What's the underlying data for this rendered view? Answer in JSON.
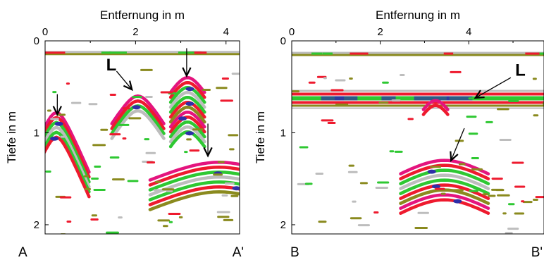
{
  "colors": {
    "red": "#ee1a2e",
    "magenta": "#e4147e",
    "green": "#2ec832",
    "blue": "#2e2ea8",
    "olive": "#8a8a1e",
    "gray": "#bdbdbd",
    "frame": "#000000"
  },
  "chart_data": [
    {
      "type": "heatmap",
      "title": "",
      "xlabel": "Entfernung in m",
      "ylabel": "Tiefe in m",
      "xlim": [
        0,
        4.3
      ],
      "ylim": [
        0,
        2.1
      ],
      "y_inverted": true,
      "x_ticks": [
        0,
        2,
        4
      ],
      "x_tick_labels": [
        "0",
        "2",
        "4"
      ],
      "y_ticks": [
        0,
        1,
        2
      ],
      "y_tick_labels": [
        "0",
        "1",
        "2"
      ],
      "profile_start_label": "A",
      "profile_end_label": "A'",
      "surface_reflection_depth": 0.14,
      "hyperbolas": [
        {
          "apex_x": 0.25,
          "apex_depth": 0.78,
          "width": 0.35,
          "layers": 6,
          "arm_reach": 0.6
        },
        {
          "apex_x": 2.05,
          "apex_depth": 0.6,
          "width": 0.5,
          "layers": 4,
          "arm_reach": 0.4
        },
        {
          "apex_x": 3.15,
          "apex_depth": 0.4,
          "width": 0.5,
          "layers": 12,
          "arm_reach": 0.2
        },
        {
          "apex_x": 3.85,
          "apex_depth": 1.32,
          "width": 1.8,
          "layers": 7,
          "arm_reach": 0.9
        }
      ],
      "annotations": [
        {
          "type": "arrow",
          "x": 0.27,
          "depth": 0.8,
          "from_dx": 0,
          "from_depth": 0.58
        },
        {
          "type": "arrow",
          "x": 3.13,
          "depth": 0.38,
          "from_dx": 0,
          "from_depth": 0.08
        },
        {
          "type": "arrow",
          "x": 3.6,
          "depth": 1.25,
          "from_dx": 0,
          "from_depth": 0.9
        },
        {
          "type": "arrow",
          "x": 1.92,
          "depth": 0.53,
          "from_x": 1.58,
          "from_depth": 0.33
        },
        {
          "type": "label",
          "text": "L",
          "x": 1.35,
          "depth": 0.32
        }
      ]
    },
    {
      "type": "heatmap",
      "title": "",
      "xlabel": "Entfernung in m",
      "ylabel": "Tiefe in m",
      "xlim": [
        0,
        5.7
      ],
      "ylim": [
        0,
        2.1
      ],
      "y_inverted": true,
      "x_ticks": [
        0,
        2,
        4
      ],
      "x_tick_labels": [
        "0",
        "2",
        "4"
      ],
      "y_ticks": [
        0,
        1,
        2
      ],
      "y_tick_labels": [
        "0",
        "1",
        "2"
      ],
      "profile_start_label": "B",
      "profile_end_label": "B'",
      "surface_reflection_depth": 0.15,
      "layer_reflection_depth": 0.64,
      "hyperbolas": [
        {
          "apex_x": 3.25,
          "apex_depth": 0.65,
          "width": 0.5,
          "layers": 2,
          "arm_reach": 0.1
        },
        {
          "apex_x": 3.45,
          "apex_depth": 1.3,
          "width": 1.4,
          "layers": 9,
          "arm_reach": 0.5
        }
      ],
      "annotations": [
        {
          "type": "arrow",
          "x": 4.15,
          "depth": 0.62,
          "from_x": 4.95,
          "from_depth": 0.4
        },
        {
          "type": "label",
          "text": "L",
          "x": 5.05,
          "depth": 0.38
        },
        {
          "type": "arrow",
          "x": 3.6,
          "depth": 1.3,
          "from_x": 3.9,
          "from_depth": 0.95
        }
      ]
    }
  ]
}
